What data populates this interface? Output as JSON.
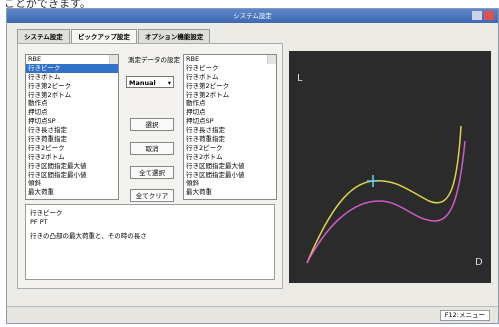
{
  "header": {
    "caption": "ことができます。"
  },
  "window": {
    "title": "システム設定"
  },
  "tabs": [
    "システム設定",
    "ピックアップ設定",
    "オプション機能設定"
  ],
  "left_list": [
    "RBE",
    "行きピーク",
    "行きボトム",
    "行き第2ピーク",
    "行き第2ボトム",
    "動作点",
    "押切点",
    "押切点SP",
    "行き長さ指定",
    "行き荷重指定",
    "行き2ピーク",
    "行き2ボトム",
    "行き区間指定最大値",
    "行き区間指定最小値",
    "傾斜",
    "最大荷重"
  ],
  "settings": {
    "label": "測定データの設定",
    "dropdown": "Manual",
    "buttons": [
      "選択",
      "取消",
      "全て選択",
      "全てクリア"
    ]
  },
  "right_list": [
    "RBE",
    "行きピーク",
    "行きボトム",
    "行き第2ピーク",
    "行き第2ボトム",
    "動作点",
    "押切点",
    "押切点SP",
    "行き長さ指定",
    "行き荷重指定",
    "行き2ピーク",
    "行き2ボトム",
    "行き区間指定最大値",
    "行き区間指定最小値",
    "傾斜",
    "最大荷重"
  ],
  "description": {
    "name": "行きピーク",
    "code": "PF PT",
    "text": "行きの凸部の最大荷重と、その時の長さ"
  },
  "graph": {
    "y_label": "L",
    "x_label": "D"
  },
  "status": {
    "key": "F12:メニュー"
  }
}
